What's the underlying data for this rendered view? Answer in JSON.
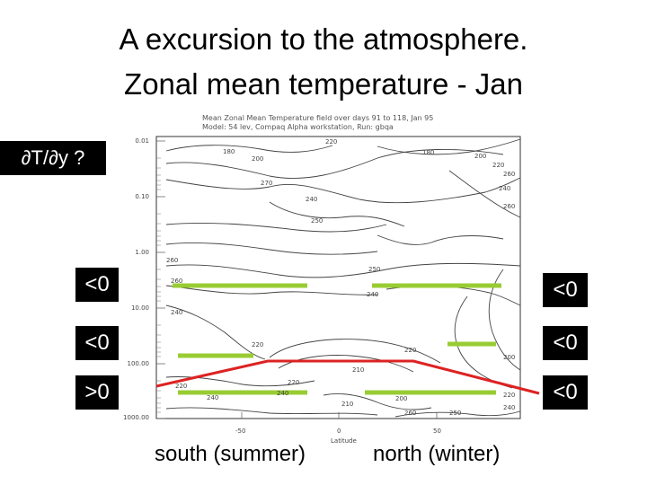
{
  "slide": {
    "title_line1": "A excursion to the atmosphere.",
    "title_line2": "Zonal mean temperature - Jan",
    "question": "∂T/∂y ?",
    "label_south": "south (summer)",
    "label_north": "north (winter)"
  },
  "gradient_boxes": {
    "left": [
      "<0",
      "<0",
      ">0"
    ],
    "right": [
      "<0",
      "<0",
      "<0"
    ]
  },
  "plot": {
    "header_line1": "Mean Zonal Mean Temperature field over days 91 to 118, Jan 95",
    "header_line2": "Model: 54 lev, Compaq Alpha workstation, Run: gbqa",
    "y_ticks": [
      "0.01",
      "0.10",
      "1.00",
      "10.00",
      "100.00",
      "1000.00"
    ],
    "x_ticks": [
      "-50",
      "0",
      "50"
    ],
    "x_axis_title": "Latitude",
    "contour_labels": [
      "180",
      "200",
      "220",
      "200",
      "180",
      "220",
      "260",
      "240",
      "270",
      "240",
      "250",
      "260",
      "260",
      "250",
      "240",
      "260",
      "240",
      "220",
      "220",
      "210",
      "200",
      "220",
      "240",
      "260",
      "220",
      "240",
      "250",
      "200",
      "220",
      "240",
      "210"
    ]
  },
  "colors": {
    "green_line": "#99cc33",
    "red_line": "#dd2222",
    "box_background": "#000000",
    "box_text": "#ffffff",
    "contour": "#444444"
  }
}
